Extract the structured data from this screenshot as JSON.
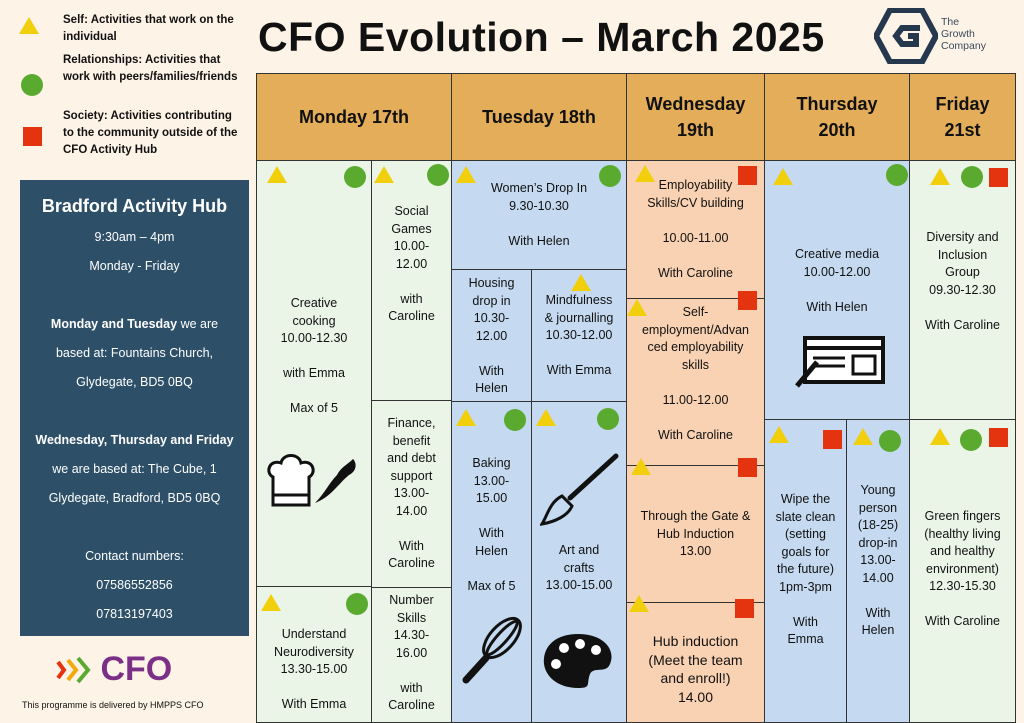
{
  "legend": [
    {
      "shape": "triangle",
      "color": "#f2cf0d",
      "text": "Self: Activities that work on the individual"
    },
    {
      "shape": "circle",
      "color": "#5aaa2f",
      "text": "Relationships: Activities that work with peers/families/friends"
    },
    {
      "shape": "square",
      "color": "#e4340f",
      "text": "Society: Activities contributing to the community outside of the CFO Activity Hub"
    }
  ],
  "title": "CFO Evolution – March 2025",
  "logo": {
    "line1": "The",
    "line2": "Growth",
    "line3": "Company"
  },
  "hub": {
    "heading": "Bradford Activity Hub",
    "hours": "9:30am – 4pm",
    "days": "Monday - Friday",
    "mt_bold": "Monday and Tuesday",
    "mt_rest": " we are",
    "mt_line2": "based at: Fountains Church,",
    "mt_line3": "Glydegate, BD5 0BQ",
    "wtf_bold": "Wednesday, Thursday and Friday",
    "wtf_line2": "we are based at: The Cube, 1",
    "wtf_line3": "Glydegate, Bradford, BD5 0BQ",
    "contact_label": "Contact numbers:",
    "phone1": "07586552856",
    "phone2": "07813197403"
  },
  "cfo_logo": "CFO",
  "footer": "This programme is delivered by HMPPS CFO",
  "days": [
    "Monday 17th",
    "Tuesday 18th",
    "Wednesday 19th",
    "Thursday 20th",
    "Friday 21st"
  ],
  "sessions": {
    "mon_cooking": [
      "Creative",
      "cooking",
      "10.00-12.30",
      "",
      "with Emma",
      "",
      "Max of 5"
    ],
    "mon_social": [
      "Social",
      "Games",
      "10.00-",
      "12.00",
      "",
      "with",
      "Caroline"
    ],
    "mon_finance": [
      "Finance,",
      "benefit",
      "and debt",
      "support",
      "13.00-",
      "14.00",
      "",
      "With",
      "Caroline"
    ],
    "mon_neuro": [
      "Understand",
      "Neurodiversity",
      "13.30-15.00",
      "",
      "With Emma"
    ],
    "mon_number": [
      "Number",
      "Skills",
      "14.30-",
      "16.00",
      "",
      "with",
      "Caroline"
    ],
    "tue_women": [
      "Women’s Drop In",
      "9.30-10.30",
      "",
      "With Helen"
    ],
    "tue_housing": [
      "Housing",
      "drop in",
      "10.30-",
      "12.00",
      "",
      "With",
      "Helen"
    ],
    "tue_mindful": [
      "Mindfulness",
      "& journalling",
      "10.30-12.00",
      "",
      "With Emma"
    ],
    "tue_baking": [
      "Baking",
      "13.00-",
      "15.00",
      "",
      "With",
      "Helen",
      "",
      "Max of 5"
    ],
    "tue_art": [
      "Art and",
      "crafts",
      "13.00-15.00"
    ],
    "wed_employ": [
      "Employability",
      "Skills/CV building",
      "",
      "10.00-11.00",
      "",
      "With Caroline"
    ],
    "wed_self": [
      "Self-",
      "employment/Advan",
      "ced employability",
      "skills",
      "",
      "11.00-12.00",
      "",
      "With Caroline"
    ],
    "wed_gate": [
      "Through the Gate &",
      "Hub Induction",
      "13.00"
    ],
    "wed_induction": [
      "Hub induction",
      "(Meet the team",
      "and enroll!)",
      "14.00"
    ],
    "thu_media": [
      "Creative media",
      "10.00-12.00",
      "",
      "With Helen"
    ],
    "thu_wipe": [
      "Wipe the",
      "slate clean",
      "(setting",
      "goals for",
      "the future)",
      "1pm-3pm",
      "",
      "With",
      "Emma"
    ],
    "thu_young": [
      "Young",
      "person",
      "(18-25)",
      "drop-in",
      "13.00-",
      "14.00",
      "",
      "With",
      "Helen"
    ],
    "fri_diversity": [
      "Diversity and",
      "Inclusion",
      "Group",
      "09.30-12.30",
      "",
      "With Caroline"
    ],
    "fri_green": [
      "Green fingers",
      "(healthy living",
      "and healthy",
      "environment)",
      "12.30-15.30",
      "",
      "With Caroline"
    ]
  }
}
